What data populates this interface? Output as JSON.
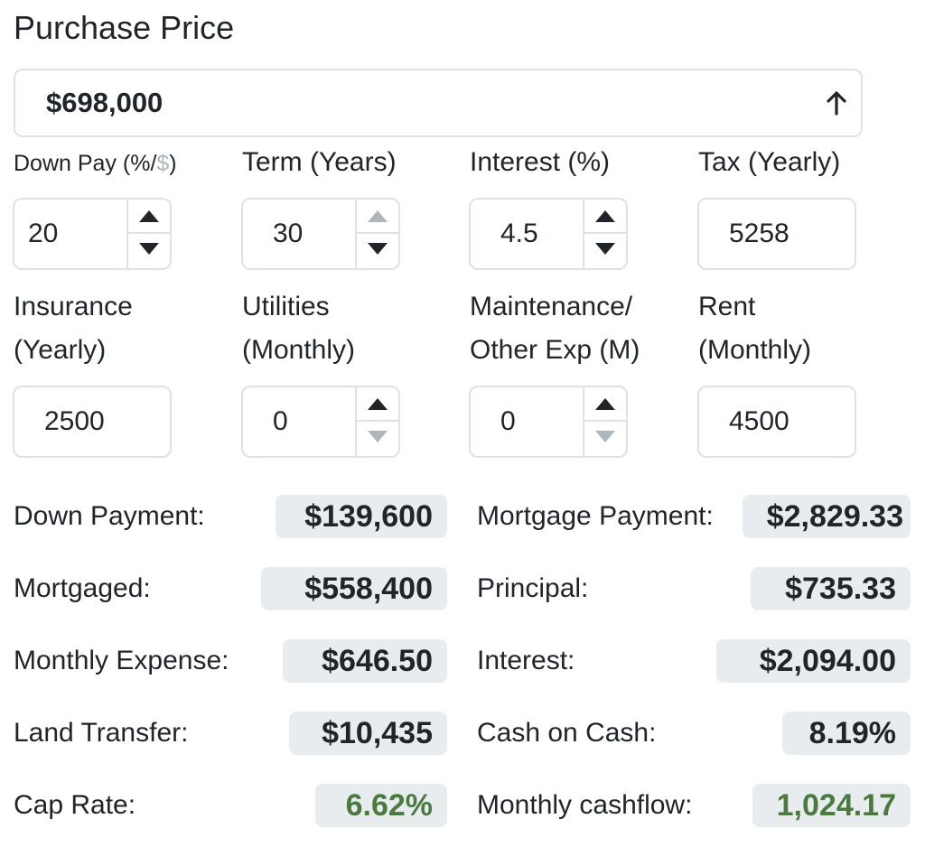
{
  "purchase_price": {
    "label": "Purchase Price",
    "value": "$698,000"
  },
  "inputs": {
    "down_pay": {
      "label_main": "Down Pay (%/",
      "label_muted": "$",
      "label_close": ")",
      "value": "20"
    },
    "term": {
      "label": "Term (Years)",
      "value": "30"
    },
    "interest": {
      "label": "Interest (%)",
      "value": "4.5"
    },
    "tax": {
      "label": "Tax (Yearly)",
      "value": "5258"
    },
    "insurance": {
      "label_line1": "Insurance",
      "label_line2": "(Yearly)",
      "value": "2500"
    },
    "utilities": {
      "label_line1": "Utilities",
      "label_line2": "(Monthly)",
      "value": "0"
    },
    "maintenance": {
      "label_line1": "Maintenance/",
      "label_line2": "Other Exp (M)",
      "value": "0"
    },
    "rent": {
      "label_line1": "Rent",
      "label_line2": "(Monthly)",
      "value": "4500"
    }
  },
  "results_left": [
    {
      "label": "Down Payment:",
      "value": "$139,600"
    },
    {
      "label": "Mortgaged:",
      "value": "$558,400"
    },
    {
      "label": "Monthly Expense:",
      "value": "$646.50"
    },
    {
      "label": "Land Transfer:",
      "value": "$10,435"
    },
    {
      "label": "Cap Rate:",
      "value": "6.62%"
    }
  ],
  "results_right": [
    {
      "label": "Mortgage Payment:",
      "value": "$2,829.33"
    },
    {
      "label": "Principal:",
      "value": "$735.33"
    },
    {
      "label": "Interest:",
      "value": "$2,094.00"
    },
    {
      "label": "Cash on Cash:",
      "value": "8.19%"
    },
    {
      "label": "Monthly cashflow:",
      "value": "1,024.17"
    }
  ],
  "colors": {
    "positive": "#4a7a3f",
    "muted": "#adb5bd",
    "pill_bg": "#e9ecef",
    "border": "#dee2e6"
  }
}
